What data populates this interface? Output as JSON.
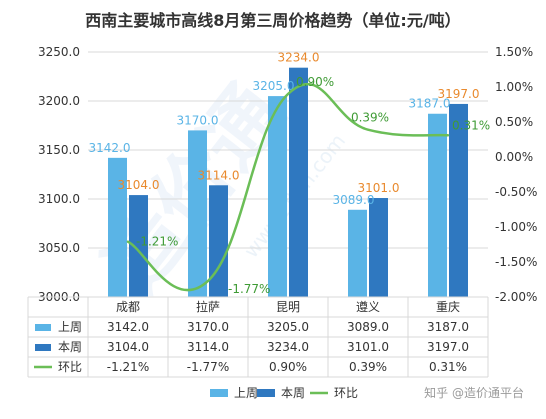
{
  "title": "西南主要城市高线8月第三周价格趋势（单位:元/吨）",
  "watermark": {
    "diagonal_text": "造价通",
    "url_text": "www.zjtcn.com"
  },
  "footer": {
    "zhihu_text": "知乎 @造价通平台"
  },
  "legend": {
    "items": [
      {
        "label": "上周",
        "color": "#5AB4E6",
        "kind": "bar"
      },
      {
        "label": "本周",
        "color": "#2F78C0",
        "kind": "bar"
      },
      {
        "label": "环比",
        "color": "#6BBE57",
        "kind": "line"
      }
    ]
  },
  "colors": {
    "prev_week_bar": "#5AB4E6",
    "this_week_bar": "#2F78C0",
    "line": "#6BBE57",
    "prev_label": "#5AB4E6",
    "this_label": "#E98A2E",
    "line_label": "#3F9B35",
    "axis_text": "#333333",
    "grid": "#D9D9D9"
  },
  "chart_data": {
    "type": "bar",
    "title": "西南主要城市高线8月第三周价格趋势（单位:元/吨）",
    "categories": [
      "成都",
      "拉萨",
      "昆明",
      "遵义",
      "重庆"
    ],
    "series": [
      {
        "name": "上周",
        "type": "bar",
        "values": [
          3142.0,
          3170.0,
          3205.0,
          3089.0,
          3187.0
        ],
        "labels": [
          "3142.0",
          "3170.0",
          "3205.0",
          "3089.0",
          "3187.0"
        ]
      },
      {
        "name": "本周",
        "type": "bar",
        "values": [
          3104.0,
          3114.0,
          3234.0,
          3101.0,
          3197.0
        ],
        "labels": [
          "3104.0",
          "3114.0",
          "3234.0",
          "3101.0",
          "3197.0"
        ]
      },
      {
        "name": "环比",
        "type": "line",
        "axis": "right",
        "values": [
          -1.21,
          -1.77,
          0.9,
          0.39,
          0.31
        ],
        "labels": [
          "-1.21%",
          "-1.77%",
          "0.90%",
          "0.39%",
          "0.31%"
        ]
      }
    ],
    "ylim": [
      3000,
      3250
    ],
    "yticks": [
      "3000.0",
      "3050.0",
      "3100.0",
      "3150.0",
      "3200.0",
      "3250.0"
    ],
    "ylim_right": [
      -2.0,
      1.5
    ],
    "yticks_right": [
      "-2.00%",
      "-1.50%",
      "-1.00%",
      "-0.50%",
      "0.00%",
      "0.50%",
      "1.00%",
      "1.50%"
    ],
    "grid": true,
    "legend_position": "bottom",
    "data_table": true
  }
}
